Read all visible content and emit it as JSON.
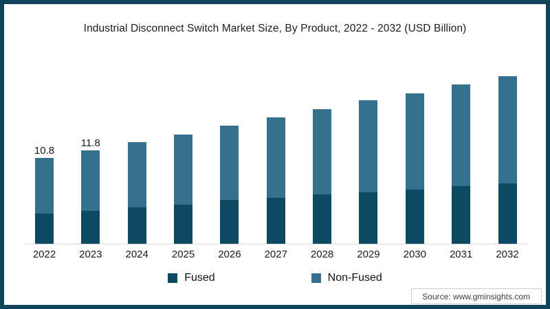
{
  "frame": {
    "border_color": "#11435a",
    "background": "#ffffff"
  },
  "title": "Industrial Disconnect Switch Market Size, By Product, 2022 - 2032 (USD Billion)",
  "legend": {
    "position": "bottom",
    "items": [
      {
        "label": "Fused",
        "color": "#0d4a61"
      },
      {
        "label": "Non-Fused",
        "color": "#35708f"
      }
    ]
  },
  "source": "Source: www.gminsights.com",
  "chart_data": {
    "type": "bar",
    "stacked": true,
    "title": "Industrial Disconnect Switch Market Size, By Product, 2022 - 2032 (USD Billion)",
    "xlabel": "",
    "ylabel": "USD Billion",
    "ylim": [
      0,
      22
    ],
    "grid": false,
    "legend_position": "bottom",
    "categories": [
      "2022",
      "2023",
      "2024",
      "2025",
      "2026",
      "2027",
      "2028",
      "2029",
      "2030",
      "2031",
      "2032"
    ],
    "series": [
      {
        "name": "Fused",
        "color": "#0d4a61",
        "values": [
          3.8,
          4.2,
          4.6,
          4.9,
          5.5,
          5.8,
          6.2,
          6.5,
          6.8,
          7.3,
          7.6
        ]
      },
      {
        "name": "Non-Fused",
        "color": "#35708f",
        "values": [
          7.0,
          7.6,
          8.2,
          8.9,
          9.4,
          10.1,
          10.8,
          11.6,
          12.2,
          12.8,
          13.5
        ]
      }
    ],
    "totals": [
      10.8,
      11.8,
      12.8,
      13.8,
      14.9,
      15.9,
      17.0,
      18.1,
      19.0,
      20.1,
      21.1
    ],
    "data_labels": [
      "10.8",
      "11.8",
      "",
      "",
      "",
      "",
      "",
      "",
      "",
      "",
      ""
    ]
  }
}
